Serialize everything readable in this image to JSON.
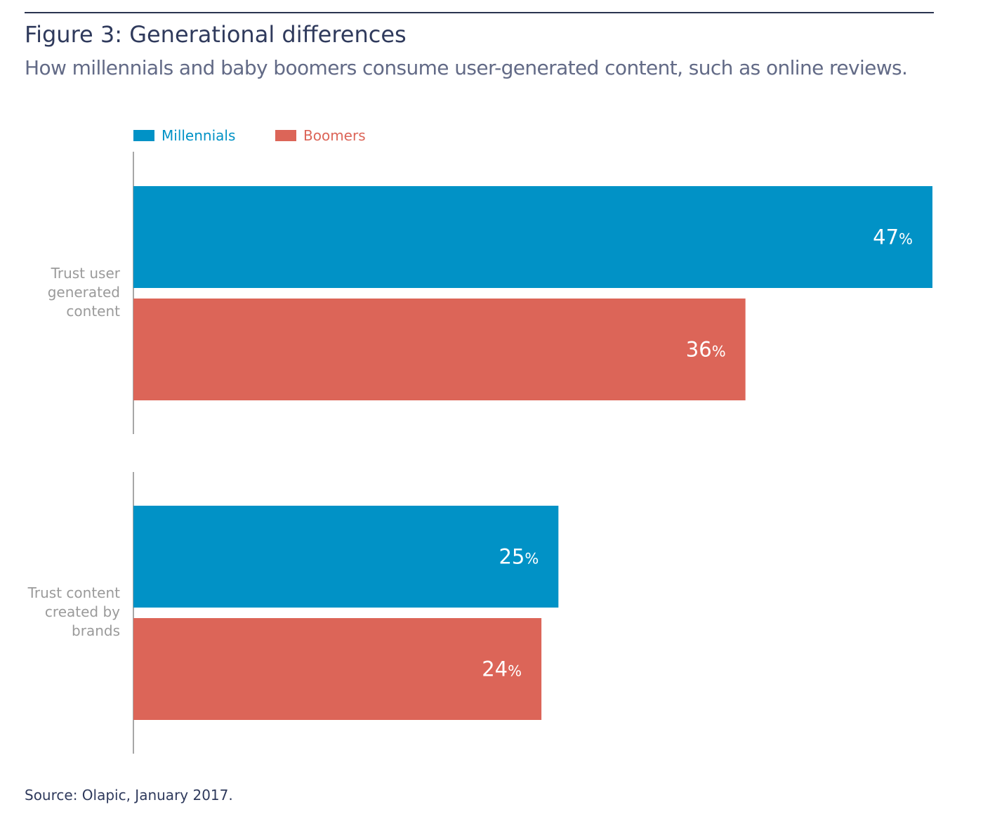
{
  "figure_title": "Figure 3: Generational differences",
  "figure_subtitle": "How millennials and baby boomers consume user-generated content, such as online reviews.",
  "source": "Source: Olapic, January 2017.",
  "chart_data": {
    "type": "bar",
    "orientation": "horizontal",
    "categories": [
      "Trust user generated content",
      "Trust content created by brands"
    ],
    "series": [
      {
        "name": "Millennials",
        "values": [
          47,
          25
        ],
        "color": "#0192c6"
      },
      {
        "name": "Boomers",
        "values": [
          36,
          24
        ],
        "color": "#dc6558"
      }
    ],
    "value_suffix": "%",
    "xlim": [
      0,
      47
    ],
    "grid": false,
    "legend_position": "top-left"
  }
}
